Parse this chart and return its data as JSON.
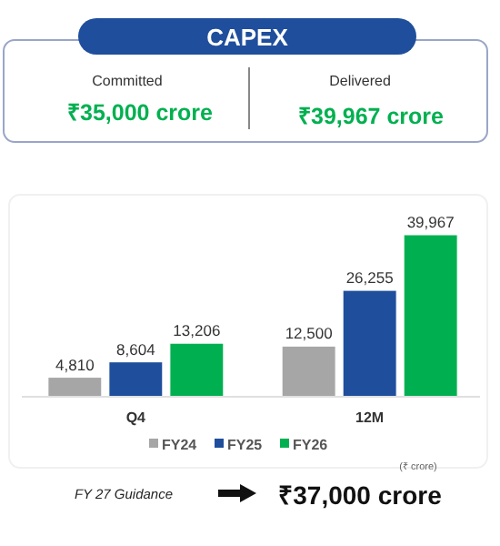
{
  "chart_data": {
    "type": "bar",
    "title": "CAPEX",
    "categories": [
      "Q4",
      "12M"
    ],
    "series": [
      {
        "name": "FY24",
        "color": "#a6a6a6",
        "values": [
          4810,
          12500
        ],
        "value_labels": [
          "4,810",
          "12,500"
        ]
      },
      {
        "name": "FY25",
        "color": "#1f4e9c",
        "values": [
          8604,
          26255
        ],
        "value_labels": [
          "8,604",
          "26,255"
        ]
      },
      {
        "name": "FY26",
        "color": "#00b050",
        "values": [
          13206,
          39967
        ],
        "value_labels": [
          "13,206",
          "39,967"
        ]
      }
    ],
    "legend": "bottom",
    "annotations": [
      "Committed",
      "₹35,000 crore",
      "Delivered",
      "₹39,967 crore",
      "(₹ crore)",
      "FY 27 Guidance",
      "₹37,000 crore"
    ]
  }
}
